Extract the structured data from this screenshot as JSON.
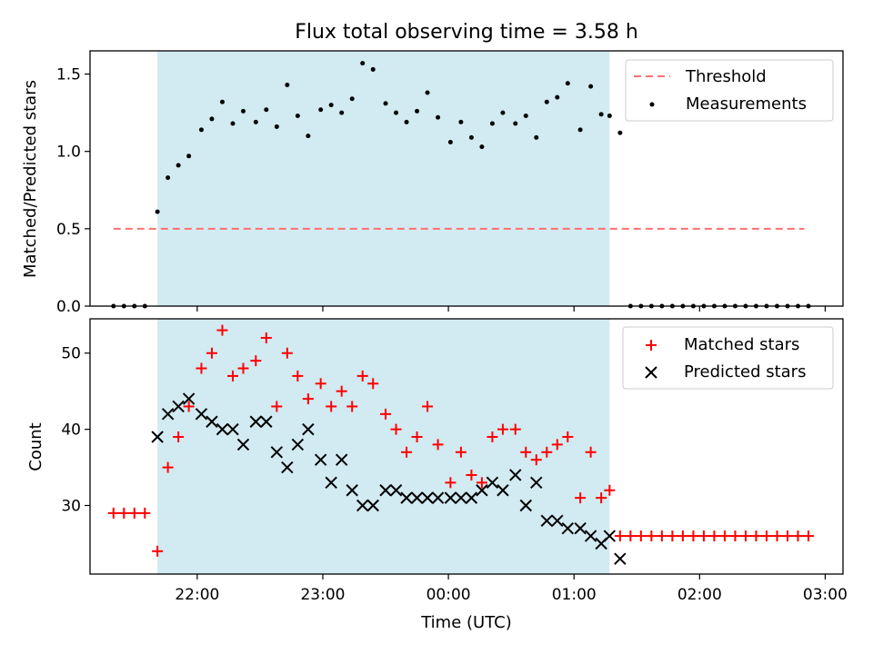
{
  "chart_data": {
    "type": "scatter",
    "title": "Flux total observing time = 3.58 h",
    "xlabel": "Time (UTC)",
    "x_ticks": [
      "22:00",
      "23:00",
      "00:00",
      "01:00",
      "02:00",
      "03:00"
    ],
    "observing_window": {
      "start": "21:41",
      "end": "01:17",
      "color": "#add8e6"
    },
    "top_panel": {
      "ylabel": "Matched/Predicted stars",
      "ylim": [
        0,
        1.65
      ],
      "y_ticks": [
        0.0,
        0.5,
        1.0,
        1.5
      ],
      "y_tick_labels": [
        "0.0",
        "0.5",
        "1.0",
        "1.5"
      ],
      "legend": [
        "Threshold",
        "Measurements"
      ],
      "threshold": {
        "name": "Threshold",
        "value": 0.5,
        "x_start": "21:20",
        "x_end": "02:50",
        "color": "#ff7070"
      },
      "measurements": {
        "name": "Measurements",
        "color": "#000000",
        "points": [
          [
            "21:20",
            0.0
          ],
          [
            "21:25",
            0.0
          ],
          [
            "21:30",
            0.0
          ],
          [
            "21:35",
            0.0
          ],
          [
            "21:41",
            0.61
          ],
          [
            "21:46",
            0.83
          ],
          [
            "21:51",
            0.91
          ],
          [
            "21:56",
            0.97
          ],
          [
            "22:02",
            1.14
          ],
          [
            "22:07",
            1.21
          ],
          [
            "22:12",
            1.32
          ],
          [
            "22:17",
            1.18
          ],
          [
            "22:22",
            1.26
          ],
          [
            "22:28",
            1.19
          ],
          [
            "22:33",
            1.27
          ],
          [
            "22:38",
            1.16
          ],
          [
            "22:43",
            1.43
          ],
          [
            "22:48",
            1.23
          ],
          [
            "22:53",
            1.1
          ],
          [
            "22:59",
            1.27
          ],
          [
            "23:04",
            1.3
          ],
          [
            "23:09",
            1.25
          ],
          [
            "23:14",
            1.34
          ],
          [
            "23:19",
            1.57
          ],
          [
            "23:24",
            1.53
          ],
          [
            "23:30",
            1.31
          ],
          [
            "23:35",
            1.25
          ],
          [
            "23:40",
            1.19
          ],
          [
            "23:45",
            1.26
          ],
          [
            "23:50",
            1.38
          ],
          [
            "23:55",
            1.22
          ],
          [
            "00:01",
            1.06
          ],
          [
            "00:06",
            1.19
          ],
          [
            "00:11",
            1.09
          ],
          [
            "00:16",
            1.03
          ],
          [
            "00:21",
            1.18
          ],
          [
            "00:26",
            1.25
          ],
          [
            "00:32",
            1.18
          ],
          [
            "00:37",
            1.23
          ],
          [
            "00:42",
            1.09
          ],
          [
            "00:47",
            1.32
          ],
          [
            "00:52",
            1.35
          ],
          [
            "00:57",
            1.44
          ],
          [
            "01:03",
            1.14
          ],
          [
            "01:08",
            1.42
          ],
          [
            "01:13",
            1.24
          ],
          [
            "01:17",
            1.23
          ],
          [
            "01:22",
            1.12
          ],
          [
            "01:27",
            0.0
          ],
          [
            "01:32",
            0.0
          ],
          [
            "01:37",
            0.0
          ],
          [
            "01:42",
            0.0
          ],
          [
            "01:47",
            0.0
          ],
          [
            "01:52",
            0.0
          ],
          [
            "01:57",
            0.0
          ],
          [
            "02:02",
            0.0
          ],
          [
            "02:07",
            0.0
          ],
          [
            "02:12",
            0.0
          ],
          [
            "02:17",
            0.0
          ],
          [
            "02:22",
            0.0
          ],
          [
            "02:27",
            0.0
          ],
          [
            "02:32",
            0.0
          ],
          [
            "02:37",
            0.0
          ],
          [
            "02:42",
            0.0
          ],
          [
            "02:47",
            0.0
          ],
          [
            "02:52",
            0.0
          ]
        ]
      }
    },
    "bottom_panel": {
      "ylabel": "Count",
      "ylim": [
        21,
        54.5
      ],
      "y_ticks": [
        30,
        40,
        50
      ],
      "y_tick_labels": [
        "30",
        "40",
        "50"
      ],
      "legend": [
        "Matched stars",
        "Predicted stars"
      ],
      "series": [
        {
          "name": "Matched stars",
          "marker": "+",
          "color": "#ff0000",
          "points": [
            [
              "21:20",
              29
            ],
            [
              "21:25",
              29
            ],
            [
              "21:30",
              29
            ],
            [
              "21:35",
              29
            ],
            [
              "21:41",
              24
            ],
            [
              "21:46",
              35
            ],
            [
              "21:51",
              39
            ],
            [
              "21:56",
              43
            ],
            [
              "22:02",
              48
            ],
            [
              "22:07",
              50
            ],
            [
              "22:12",
              53
            ],
            [
              "22:17",
              47
            ],
            [
              "22:22",
              48
            ],
            [
              "22:28",
              49
            ],
            [
              "22:33",
              52
            ],
            [
              "22:38",
              43
            ],
            [
              "22:43",
              50
            ],
            [
              "22:48",
              47
            ],
            [
              "22:53",
              44
            ],
            [
              "22:59",
              46
            ],
            [
              "23:04",
              43
            ],
            [
              "23:09",
              45
            ],
            [
              "23:14",
              43
            ],
            [
              "23:19",
              47
            ],
            [
              "23:24",
              46
            ],
            [
              "23:30",
              42
            ],
            [
              "23:35",
              40
            ],
            [
              "23:40",
              37
            ],
            [
              "23:45",
              39
            ],
            [
              "23:50",
              43
            ],
            [
              "23:55",
              38
            ],
            [
              "00:01",
              33
            ],
            [
              "00:06",
              37
            ],
            [
              "00:11",
              34
            ],
            [
              "00:16",
              33
            ],
            [
              "00:21",
              39
            ],
            [
              "00:26",
              40
            ],
            [
              "00:32",
              40
            ],
            [
              "00:37",
              37
            ],
            [
              "00:42",
              36
            ],
            [
              "00:47",
              37
            ],
            [
              "00:52",
              38
            ],
            [
              "00:57",
              39
            ],
            [
              "01:03",
              31
            ],
            [
              "01:08",
              37
            ],
            [
              "01:13",
              31
            ],
            [
              "01:17",
              32
            ],
            [
              "01:22",
              26
            ],
            [
              "01:27",
              26
            ],
            [
              "01:32",
              26
            ],
            [
              "01:37",
              26
            ],
            [
              "01:42",
              26
            ],
            [
              "01:47",
              26
            ],
            [
              "01:52",
              26
            ],
            [
              "01:57",
              26
            ],
            [
              "02:02",
              26
            ],
            [
              "02:07",
              26
            ],
            [
              "02:12",
              26
            ],
            [
              "02:17",
              26
            ],
            [
              "02:22",
              26
            ],
            [
              "02:27",
              26
            ],
            [
              "02:32",
              26
            ],
            [
              "02:37",
              26
            ],
            [
              "02:42",
              26
            ],
            [
              "02:47",
              26
            ],
            [
              "02:52",
              26
            ]
          ]
        },
        {
          "name": "Predicted stars",
          "marker": "x",
          "color": "#000000",
          "points": [
            [
              "21:41",
              39
            ],
            [
              "21:46",
              42
            ],
            [
              "21:51",
              43
            ],
            [
              "21:56",
              44
            ],
            [
              "22:02",
              42
            ],
            [
              "22:07",
              41
            ],
            [
              "22:12",
              40
            ],
            [
              "22:17",
              40
            ],
            [
              "22:22",
              38
            ],
            [
              "22:28",
              41
            ],
            [
              "22:33",
              41
            ],
            [
              "22:38",
              37
            ],
            [
              "22:43",
              35
            ],
            [
              "22:48",
              38
            ],
            [
              "22:53",
              40
            ],
            [
              "22:59",
              36
            ],
            [
              "23:04",
              33
            ],
            [
              "23:09",
              36
            ],
            [
              "23:14",
              32
            ],
            [
              "23:19",
              30
            ],
            [
              "23:24",
              30
            ],
            [
              "23:30",
              32
            ],
            [
              "23:35",
              32
            ],
            [
              "23:40",
              31
            ],
            [
              "23:45",
              31
            ],
            [
              "23:50",
              31
            ],
            [
              "23:55",
              31
            ],
            [
              "00:01",
              31
            ],
            [
              "00:06",
              31
            ],
            [
              "00:11",
              31
            ],
            [
              "00:16",
              32
            ],
            [
              "00:21",
              33
            ],
            [
              "00:26",
              32
            ],
            [
              "00:32",
              34
            ],
            [
              "00:37",
              30
            ],
            [
              "00:42",
              33
            ],
            [
              "00:47",
              28
            ],
            [
              "00:52",
              28
            ],
            [
              "00:57",
              27
            ],
            [
              "01:03",
              27
            ],
            [
              "01:08",
              26
            ],
            [
              "01:13",
              25
            ],
            [
              "01:17",
              26
            ],
            [
              "01:22",
              23
            ]
          ]
        }
      ]
    }
  }
}
